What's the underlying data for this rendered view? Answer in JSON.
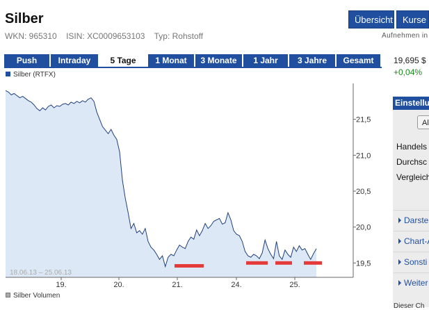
{
  "header": {
    "title": "Silber",
    "wkn": "WKN: 965310",
    "isin": "ISIN: XC0009653103",
    "typ": "Typ: Rohstoff",
    "btn_uebersicht": "Übersicht",
    "btn_kurse": "Kurse",
    "aufnehmen": "Aufnehmen in"
  },
  "tabs": [
    "Push",
    "Intraday",
    "5 Tage",
    "1 Monat",
    "3 Monate",
    "1 Jahr",
    "3 Jahre",
    "Gesamt"
  ],
  "active_tab": "5 Tage",
  "quote": {
    "price": "19,695 $",
    "change": "+0,04%"
  },
  "legend": {
    "series": "Silber (RTFX)",
    "volume": "Silber Volumen"
  },
  "sidebar": {
    "heading": "Einstellu",
    "button": "Al",
    "rows": [
      "Handels",
      "Durchsc",
      "Vergleich"
    ],
    "links": [
      "Darste",
      "Chart-A",
      "Sonsti",
      "Weiter"
    ],
    "bottom": "Dieser Ch"
  },
  "colors": {
    "brand": "#1f4f9e",
    "positive": "#1a8a1a",
    "marker": "#e53a3a",
    "area": "#dde8f7"
  },
  "chart_data": {
    "type": "area",
    "title": "Silber (RTFX)",
    "date_range": "18.06.13 – 25.06.13",
    "x_ticks": [
      "19.",
      "20.",
      "21.",
      "24.",
      "25."
    ],
    "y_ticks": [
      "21,5",
      "21,0",
      "20,5",
      "20,0",
      "19,5"
    ],
    "ylim": [
      19.3,
      22.0
    ],
    "grid": false,
    "series": [
      {
        "values": [
          21.9,
          21.88,
          21.84,
          21.86,
          21.83,
          21.8,
          21.82,
          21.79,
          21.76,
          21.74,
          21.7,
          21.65,
          21.62,
          21.66,
          21.63,
          21.68,
          21.7,
          21.66,
          21.69,
          21.68,
          21.71,
          21.72,
          21.7,
          21.74,
          21.72,
          21.75,
          21.73,
          21.76,
          21.74,
          21.78,
          21.8,
          21.75,
          21.6,
          21.5,
          21.4,
          21.35,
          21.3,
          21.36,
          21.28,
          21.22,
          21.05,
          20.65,
          20.4,
          20.2,
          19.98,
          20.05,
          19.92,
          19.95,
          19.9,
          19.98,
          19.8,
          19.72,
          19.68,
          19.62,
          19.55,
          19.6,
          19.45,
          19.58,
          19.62,
          19.6,
          19.68,
          19.75,
          19.72,
          19.7,
          19.8,
          19.86,
          19.83,
          19.96,
          19.88,
          19.95,
          20.05,
          19.98,
          20.02,
          20.08,
          20.1,
          20.12,
          20.04,
          20.06,
          20.2,
          20.1,
          19.95,
          19.9,
          19.88,
          19.8,
          19.66,
          19.6,
          19.58,
          19.62,
          19.6,
          19.56,
          19.64,
          19.82,
          19.7,
          19.62,
          19.56,
          19.8,
          19.6,
          19.55,
          19.68,
          19.62,
          19.58,
          19.72,
          19.66,
          19.74,
          19.68,
          19.7,
          19.62,
          19.55,
          19.63,
          19.7
        ]
      }
    ],
    "markers": [
      19.46,
      19.5,
      19.5,
      19.5
    ]
  }
}
